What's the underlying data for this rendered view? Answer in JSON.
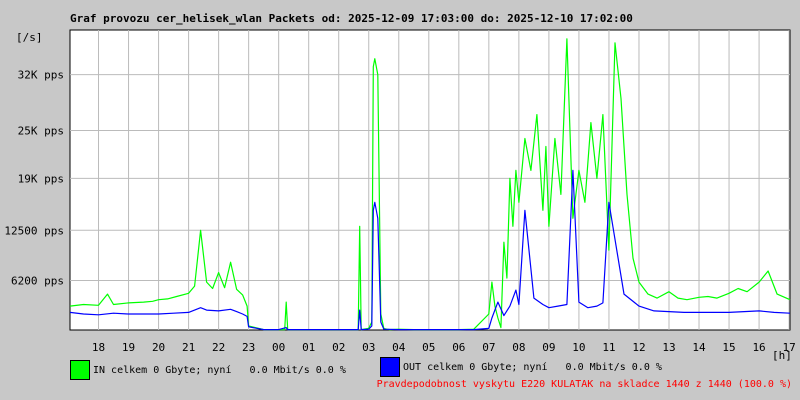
{
  "chart_data": {
    "type": "line",
    "title": "Graf provozu cer_helisek_wlan Packets od: 2025-12-09 17:03:00 do: 2025-12-10 17:02:00",
    "ylabel": "[/s]",
    "xlabel": "[h]",
    "ylim": [
      0,
      37600
    ],
    "y_ticks": [
      {
        "value": 6200,
        "label": "6200 pps"
      },
      {
        "value": 12500,
        "label": "12500 pps"
      },
      {
        "value": 19000,
        "label": "19K pps"
      },
      {
        "value": 25000,
        "label": "25K pps"
      },
      {
        "value": 32000,
        "label": "32K pps"
      }
    ],
    "x_hours_range": [
      17.05,
      41.03
    ],
    "x_tick_labels": [
      "18",
      "19",
      "20",
      "21",
      "22",
      "23",
      "00",
      "01",
      "02",
      "03",
      "04",
      "05",
      "06",
      "07",
      "08",
      "09",
      "10",
      "11",
      "12",
      "13",
      "14",
      "15",
      "16",
      "17"
    ],
    "grid": true,
    "series": [
      {
        "name": "IN",
        "color": "#00ff00",
        "x": [
          17.05,
          17.5,
          18.0,
          18.3,
          18.5,
          19.0,
          19.5,
          19.8,
          20.0,
          20.3,
          20.6,
          21.0,
          21.2,
          21.4,
          21.6,
          21.8,
          22.0,
          22.2,
          22.4,
          22.6,
          22.8,
          22.95,
          23.0,
          23.5,
          23.9,
          24.0,
          24.2,
          24.25,
          24.3,
          24.4,
          25.0,
          26.0,
          26.65,
          26.7,
          26.75,
          27.0,
          27.1,
          27.15,
          27.2,
          27.3,
          27.4,
          27.5,
          27.6,
          27.7,
          28.0,
          28.5,
          29.0,
          29.9,
          30.0,
          30.5,
          31.0,
          31.1,
          31.2,
          31.3,
          31.4,
          31.5,
          31.6,
          31.7,
          31.8,
          31.9,
          32.0,
          32.2,
          32.4,
          32.6,
          32.8,
          32.9,
          33.0,
          33.2,
          33.4,
          33.6,
          33.8,
          34.0,
          34.2,
          34.4,
          34.6,
          34.8,
          35.0,
          35.2,
          35.4,
          35.6,
          35.8,
          36.0,
          36.3,
          36.6,
          37.0,
          37.3,
          37.6,
          38.0,
          38.3,
          38.6,
          39.0,
          39.3,
          39.6,
          40.0,
          40.3,
          40.6,
          41.03
        ],
        "values": [
          3000,
          3200,
          3100,
          4500,
          3200,
          3400,
          3500,
          3600,
          3800,
          3900,
          4200,
          4600,
          5500,
          12500,
          6000,
          5200,
          7200,
          5300,
          8500,
          5100,
          4400,
          3000,
          500,
          50,
          50,
          50,
          50,
          3500,
          50,
          50,
          50,
          50,
          50,
          13000,
          50,
          200,
          1000,
          33000,
          34000,
          32000,
          2000,
          200,
          100,
          50,
          100,
          50,
          50,
          50,
          50,
          100,
          2000,
          6000,
          3000,
          1500,
          300,
          11000,
          6500,
          19000,
          13000,
          20000,
          16000,
          24000,
          20000,
          27000,
          15000,
          23000,
          13000,
          24000,
          17000,
          36500,
          14000,
          20000,
          16000,
          26000,
          19000,
          27000,
          10000,
          36000,
          29000,
          17000,
          9000,
          6000,
          4500,
          4000,
          4800,
          4000,
          3800,
          4100,
          4200,
          4000,
          4600,
          5200,
          4800,
          6000,
          7400,
          4500,
          3800
        ]
      },
      {
        "name": "OUT",
        "color": "#0000ff",
        "x": [
          17.05,
          17.5,
          18.0,
          18.5,
          19.0,
          19.5,
          19.8,
          20.0,
          20.5,
          21.0,
          21.4,
          21.6,
          22.0,
          22.4,
          22.6,
          22.8,
          22.95,
          23.0,
          23.5,
          24.0,
          24.25,
          24.3,
          25.0,
          26.0,
          26.65,
          26.7,
          26.75,
          27.0,
          27.1,
          27.15,
          27.2,
          27.3,
          27.4,
          27.5,
          28.0,
          29.0,
          29.9,
          30.0,
          30.5,
          31.0,
          31.1,
          31.3,
          31.5,
          31.7,
          31.9,
          32.0,
          32.2,
          32.5,
          32.8,
          33.0,
          33.3,
          33.6,
          33.8,
          34.0,
          34.3,
          34.6,
          34.8,
          35.0,
          35.5,
          36.0,
          36.5,
          37.0,
          37.5,
          38.0,
          38.5,
          39.0,
          39.5,
          40.0,
          40.5,
          41.03
        ],
        "values": [
          2200,
          2000,
          1900,
          2100,
          2000,
          2000,
          2000,
          2000,
          2100,
          2200,
          2800,
          2500,
          2400,
          2600,
          2300,
          2000,
          1700,
          400,
          50,
          50,
          300,
          50,
          50,
          50,
          50,
          2500,
          50,
          100,
          500,
          15000,
          16000,
          14000,
          1000,
          100,
          50,
          50,
          50,
          50,
          50,
          200,
          1500,
          3500,
          1800,
          3000,
          5000,
          3200,
          15000,
          4000,
          3200,
          2800,
          3000,
          3200,
          20000,
          3500,
          2800,
          3000,
          3400,
          16000,
          4500,
          3000,
          2400,
          2300,
          2200,
          2200,
          2200,
          2200,
          2300,
          2400,
          2200,
          2100
        ]
      }
    ]
  },
  "legend": {
    "in_text": "IN celkem 0 Gbyte; nyní   0.0 Mbit/s 0.0 %",
    "out_text": "OUT celkem 0 Gbyte; nyní   0.0 Mbit/s 0.0 %",
    "in_color": "#00ff00",
    "out_color": "#0000ff"
  },
  "probability_text": "Pravdepodobnost vyskytu E220 KULATAK na skladce 1440 z 1440 (100.0 %)"
}
